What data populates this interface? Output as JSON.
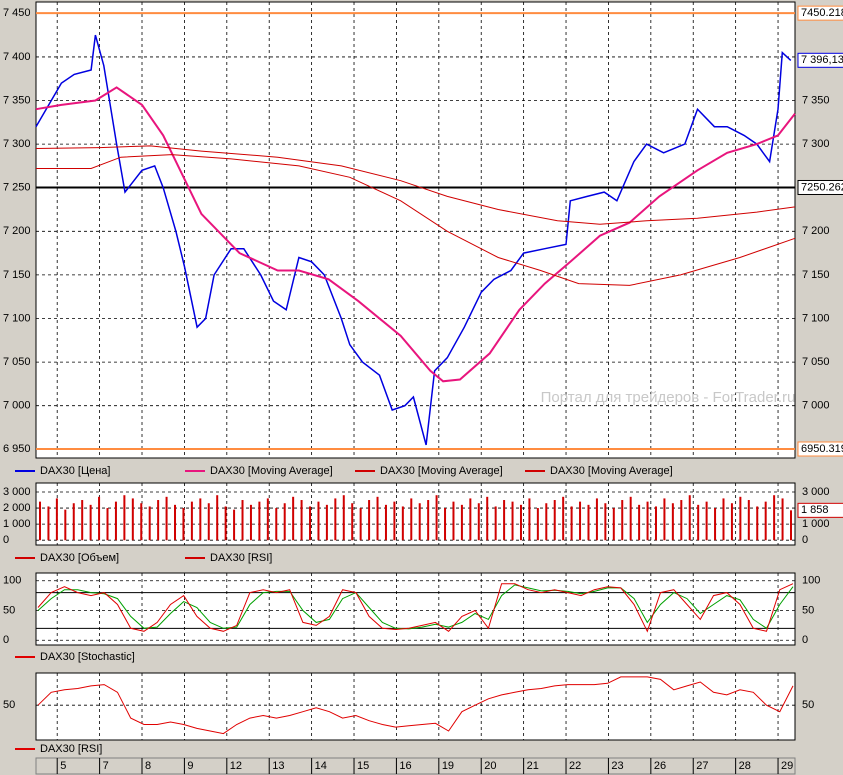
{
  "chart_data": [
    {
      "type": "line",
      "xlim": [
        -0.5,
        17.4
      ],
      "xticks": [
        {
          "value": 0,
          "label": "5"
        },
        {
          "value": 1,
          "label": "7"
        },
        {
          "value": 2,
          "label": "8"
        },
        {
          "value": 3,
          "label": "9"
        },
        {
          "value": 4,
          "label": "12"
        },
        {
          "value": 5,
          "label": "13"
        },
        {
          "value": 6,
          "label": "14"
        },
        {
          "value": 7,
          "label": "15"
        },
        {
          "value": 8,
          "label": "16"
        },
        {
          "value": 9,
          "label": "19"
        },
        {
          "value": 10,
          "label": "20"
        },
        {
          "value": 11,
          "label": "21"
        },
        {
          "value": 12,
          "label": "22"
        },
        {
          "value": 13,
          "label": "23"
        },
        {
          "value": 14,
          "label": "26"
        },
        {
          "value": 15,
          "label": "27"
        },
        {
          "value": 16,
          "label": "28"
        },
        {
          "value": 17,
          "label": "29"
        }
      ],
      "ylim": [
        6940,
        7463
      ],
      "yticks": [
        {
          "value": 7450,
          "label": "7 450"
        },
        {
          "value": 7400,
          "label": "7 400"
        },
        {
          "value": 7350,
          "label": "7 350"
        },
        {
          "value": 7300,
          "label": "7 300"
        },
        {
          "value": 7250,
          "label": "7 250"
        },
        {
          "value": 7200,
          "label": "7 200"
        },
        {
          "value": 7150,
          "label": "7 150"
        },
        {
          "value": 7100,
          "label": "7 100"
        },
        {
          "value": 7050,
          "label": "7 050"
        },
        {
          "value": 7000,
          "label": "7 000"
        },
        {
          "value": 6950,
          "label": "6 950"
        }
      ],
      "grid": true,
      "watermark": "Портал для трейдеров - ForTrader.ru",
      "levels": [
        {
          "value": 7450.218,
          "label": "7450.218",
          "color": "#ff8c40"
        },
        {
          "value": 7250.262,
          "label": "7250.262",
          "color": "#000000"
        },
        {
          "value": 6950.319,
          "label": "6950.319",
          "color": "#ff8c40"
        }
      ],
      "last_value": {
        "value": 7396.13,
        "label": "7 396,13",
        "color": "#0000e0"
      },
      "series": [
        {
          "name": "DAX30 [Цена]",
          "color": "#0000e0",
          "width": 1.5,
          "x": [
            -0.5,
            0.1,
            0.4,
            0.8,
            0.9,
            1.1,
            1.4,
            1.6,
            2.0,
            2.3,
            2.5,
            2.8,
            3.0,
            3.3,
            3.5,
            3.7,
            4.1,
            4.4,
            4.8,
            5.1,
            5.4,
            5.7,
            6.0,
            6.3,
            6.7,
            6.9,
            7.2,
            7.6,
            7.9,
            8.2,
            8.4,
            8.7,
            8.9,
            9.2,
            9.6,
            10.0,
            10.3,
            10.7,
            11.0,
            11.5,
            12.0,
            12.1,
            12.5,
            12.9,
            13.2,
            13.6,
            13.9,
            14.3,
            14.8,
            15.1,
            15.5,
            15.8,
            16.2,
            16.5,
            16.8,
            17.0,
            17.1,
            17.3
          ],
          "values": [
            7320,
            7370,
            7380,
            7385,
            7425,
            7390,
            7300,
            7245,
            7270,
            7275,
            7250,
            7200,
            7160,
            7090,
            7100,
            7150,
            7180,
            7180,
            7150,
            7120,
            7110,
            7170,
            7165,
            7150,
            7100,
            7070,
            7050,
            7035,
            6995,
            7000,
            7010,
            6955,
            7040,
            7055,
            7090,
            7130,
            7145,
            7155,
            7175,
            7180,
            7185,
            7235,
            7240,
            7245,
            7235,
            7280,
            7300,
            7290,
            7300,
            7340,
            7320,
            7320,
            7310,
            7300,
            7280,
            7340,
            7405,
            7396
          ]
        },
        {
          "name": "DAX30 [Moving Average]",
          "color": "#e8157d",
          "width": 2,
          "x": [
            -0.5,
            0.1,
            0.9,
            1.4,
            2.0,
            2.5,
            2.9,
            3.4,
            4.3,
            5.2,
            5.7,
            6.4,
            7.1,
            8.1,
            8.8,
            9.1,
            9.5,
            10.2,
            10.9,
            11.5,
            12.1,
            12.8,
            13.5,
            14.2,
            15.1,
            15.8,
            16.5,
            17.0,
            17.4
          ],
          "values": [
            7340,
            7345,
            7350,
            7365,
            7345,
            7310,
            7270,
            7220,
            7175,
            7155,
            7155,
            7145,
            7120,
            7080,
            7040,
            7028,
            7030,
            7060,
            7110,
            7140,
            7165,
            7195,
            7210,
            7240,
            7270,
            7290,
            7300,
            7310,
            7335
          ]
        },
        {
          "name": "DAX30 [Moving Average]",
          "color": "#d00000",
          "width": 1,
          "x": [
            -0.5,
            1.0,
            2.2,
            3.4,
            5.2,
            6.7,
            8.1,
            9.2,
            10.4,
            11.8,
            12.8,
            13.9,
            15.1,
            16.5,
            17.4
          ],
          "values": [
            7295,
            7296,
            7298,
            7292,
            7285,
            7275,
            7258,
            7240,
            7225,
            7212,
            7208,
            7212,
            7215,
            7222,
            7228
          ]
        },
        {
          "name": "DAX30 [Moving Average]",
          "color": "#d00000",
          "width": 1,
          "x": [
            -0.5,
            0.8,
            1.5,
            2.7,
            4.1,
            5.7,
            6.9,
            8.1,
            9.2,
            10.4,
            11.4,
            12.3,
            13.5,
            14.7,
            16.1,
            17.4
          ],
          "values": [
            7272,
            7272,
            7285,
            7288,
            7283,
            7275,
            7262,
            7235,
            7200,
            7170,
            7155,
            7140,
            7138,
            7150,
            7170,
            7192
          ]
        }
      ]
    },
    {
      "type": "bar",
      "ylim": [
        -300,
        3560
      ],
      "yticks": [
        {
          "value": 3000,
          "label": "3 000"
        },
        {
          "value": 2000,
          "label": "2 000"
        },
        {
          "value": 1000,
          "label": "1 000"
        },
        0
      ],
      "grid": true,
      "last_value": {
        "value": 1858,
        "label": "1 858",
        "color": "#d00000"
      },
      "extra_legend": [
        {
          "name": "DAX30 [RSI]",
          "color": "#d00000"
        }
      ],
      "series": [
        {
          "name": "DAX30 [Объем]",
          "color": "#d00000",
          "values": [
            2400,
            2100,
            2600,
            1900,
            2300,
            2500,
            2200,
            2700,
            2000,
            2400,
            2800,
            2600,
            2300,
            2100,
            2500,
            2700,
            2200,
            2000,
            2400,
            2600,
            2300,
            2800,
            2100,
            1900,
            2500,
            2200,
            2400,
            2600,
            2000,
            2300,
            2700,
            2500,
            2100,
            2400,
            2200,
            2600,
            2800,
            2300,
            2000,
            2500,
            2700,
            2200,
            2400,
            2100,
            2600,
            2300,
            2500,
            2800,
            2000,
            2400,
            2200,
            2600,
            2300,
            2700,
            2100,
            2500,
            2400,
            2200,
            2600,
            2000,
            2300,
            2500,
            2700,
            2100,
            2400,
            2200,
            2600,
            2300,
            2000,
            2500,
            2700,
            2200,
            2400,
            2100,
            2600,
            2300,
            2500,
            2800,
            2200,
            2400,
            2000,
            2600,
            2300,
            2700,
            2500,
            2100,
            2400,
            2800,
            2600,
            1858
          ]
        }
      ]
    },
    {
      "type": "line",
      "ylim": [
        -8,
        113
      ],
      "yticks": [
        100,
        50,
        0
      ],
      "grid": true,
      "levels": [
        80,
        20
      ],
      "series": [
        {
          "name": "DAX30 [Stochastic]",
          "color": "#e00000",
          "width": 1,
          "signal_color": "#00a000",
          "values": [
            55,
            80,
            90,
            80,
            75,
            80,
            60,
            20,
            15,
            30,
            60,
            75,
            40,
            20,
            15,
            25,
            80,
            85,
            80,
            85,
            30,
            25,
            40,
            85,
            80,
            40,
            20,
            18,
            20,
            25,
            30,
            15,
            40,
            50,
            20,
            95,
            95,
            85,
            80,
            85,
            80,
            75,
            85,
            90,
            88,
            60,
            15,
            80,
            85,
            60,
            35,
            75,
            80,
            60,
            20,
            15,
            85,
            95
          ],
          "signal": [
            50,
            70,
            85,
            85,
            80,
            78,
            70,
            40,
            20,
            22,
            45,
            65,
            55,
            30,
            20,
            22,
            60,
            80,
            82,
            82,
            50,
            30,
            35,
            70,
            80,
            55,
            30,
            20,
            19,
            22,
            27,
            22,
            30,
            45,
            35,
            75,
            93,
            88,
            83,
            84,
            82,
            78,
            82,
            88,
            88,
            70,
            30,
            60,
            80,
            70,
            45,
            60,
            75,
            68,
            35,
            20,
            60,
            90
          ]
        }
      ]
    },
    {
      "type": "line",
      "ylim": [
        23,
        75
      ],
      "yticks": [
        50
      ],
      "grid": true,
      "series": [
        {
          "name": "DAX30 [RSI]",
          "color": "#e00000",
          "width": 1,
          "values": [
            50,
            60,
            62,
            63,
            65,
            66,
            60,
            40,
            35,
            35,
            37,
            35,
            32,
            30,
            28,
            35,
            40,
            42,
            40,
            42,
            45,
            48,
            45,
            40,
            42,
            38,
            35,
            33,
            34,
            35,
            36,
            30,
            45,
            50,
            55,
            58,
            60,
            62,
            63,
            65,
            66,
            66,
            66,
            67,
            72,
            72,
            72,
            70,
            62,
            65,
            68,
            60,
            58,
            62,
            60,
            50,
            45,
            65
          ]
        }
      ]
    }
  ]
}
